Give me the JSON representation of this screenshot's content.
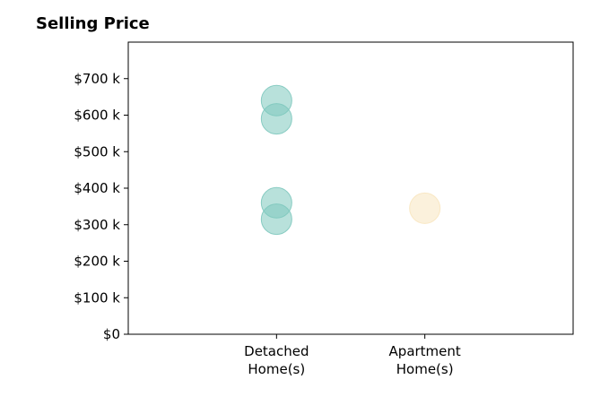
{
  "chart_data": {
    "type": "scatter",
    "title": "Selling Price",
    "xlabel": "",
    "ylabel": "",
    "categories": [
      [
        "Detached",
        "Home(s)"
      ],
      [
        "Apartment",
        "Home(s)"
      ]
    ],
    "xlim": [
      -1,
      2
    ],
    "ylim": [
      0,
      800000
    ],
    "yticks": [
      0,
      100000,
      200000,
      300000,
      400000,
      500000,
      600000,
      700000
    ],
    "ytick_labels": [
      "$0",
      "$100 k",
      "$200 k",
      "$300 k",
      "$400 k",
      "$500 k",
      "$600 k",
      "$700 k"
    ],
    "grid": false,
    "series": [
      {
        "category": 0,
        "values": [
          640000,
          590000,
          360000,
          315000
        ],
        "color": "#7ec8be"
      },
      {
        "category": 1,
        "values": [
          345000
        ],
        "color": "#f8e6bf"
      }
    ]
  }
}
